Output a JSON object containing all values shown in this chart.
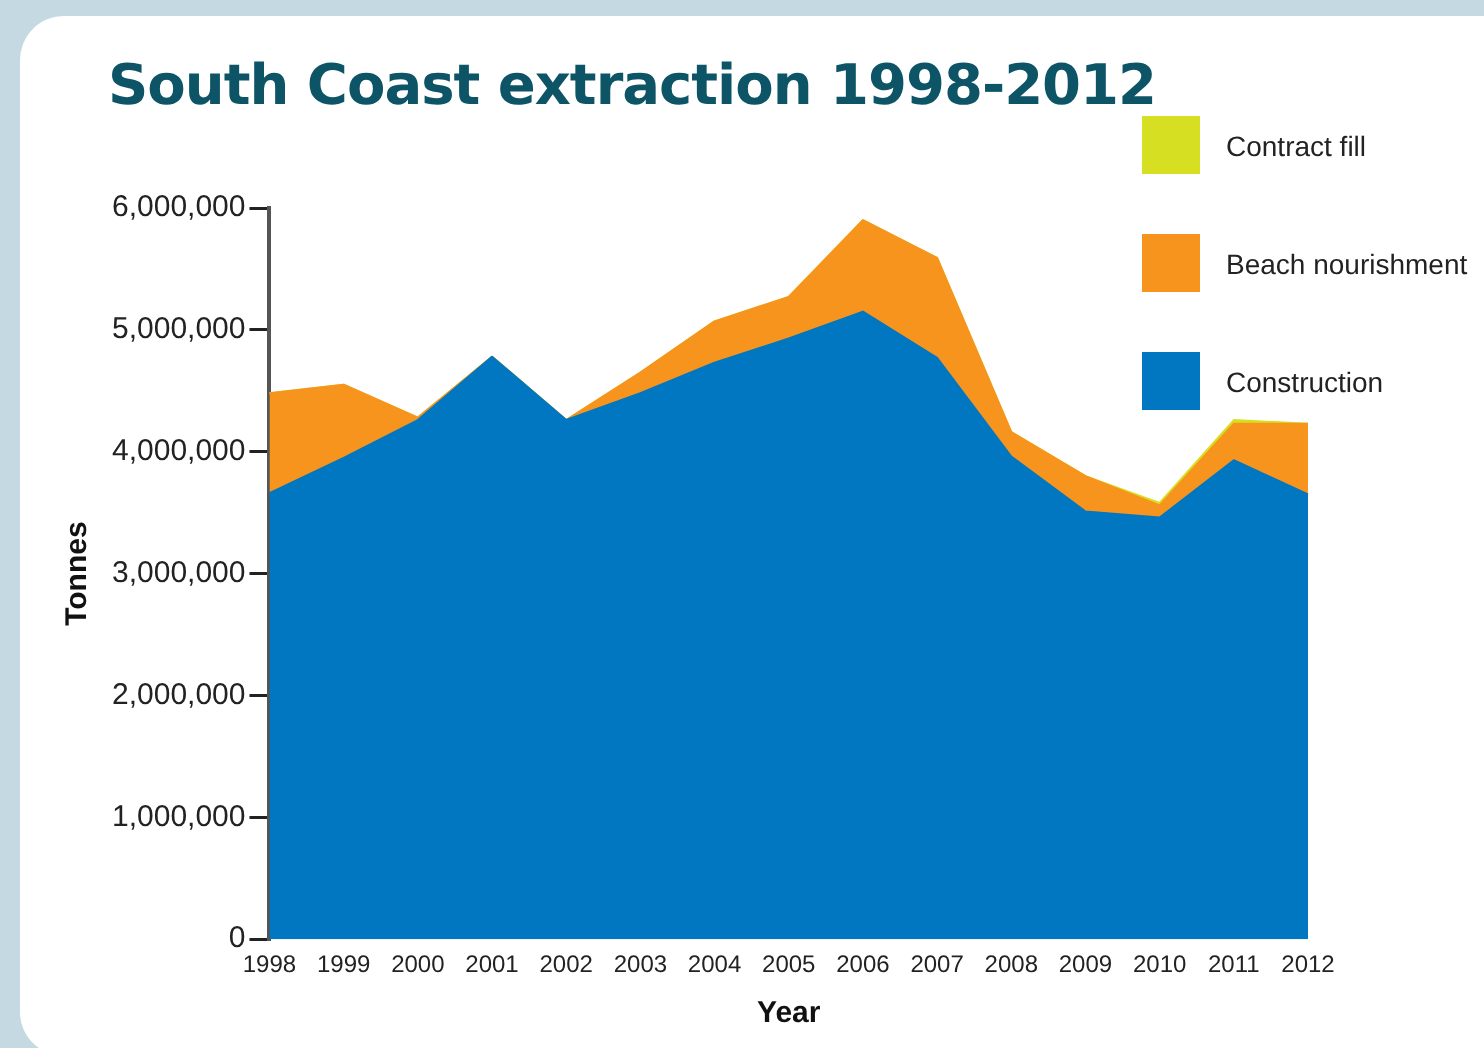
{
  "chart_data": {
    "type": "area",
    "title": "South Coast extraction 1998-2012",
    "xlabel": "Year",
    "ylabel": "Tonnes",
    "stacked": true,
    "legend": "top right",
    "grid": false,
    "categories": [
      "1998",
      "1999",
      "2000",
      "2001",
      "2002",
      "2003",
      "2004",
      "2005",
      "2006",
      "2007",
      "2008",
      "2009",
      "2010",
      "2011",
      "2012"
    ],
    "ylim": [
      0,
      6000000
    ],
    "yticks": [
      {
        "value": 0,
        "label": "0"
      },
      {
        "value": 1000000,
        "label": "1,000,000"
      },
      {
        "value": 2000000,
        "label": "2,000,000"
      },
      {
        "value": 3000000,
        "label": "3,000,000"
      },
      {
        "value": 4000000,
        "label": "4,000,000"
      },
      {
        "value": 5000000,
        "label": "5,000,000"
      },
      {
        "value": 6000000,
        "label": "6,000,000"
      }
    ],
    "series": [
      {
        "name": "Construction",
        "color": "#0077c0",
        "values": [
          3660000,
          3950000,
          4260000,
          4780000,
          4260000,
          4480000,
          4730000,
          4930000,
          5150000,
          4770000,
          3960000,
          3510000,
          3460000,
          3930000,
          3650000
        ]
      },
      {
        "name": "Beach nourishment",
        "color": "#f7941d",
        "values": [
          820000,
          600000,
          20000,
          0,
          0,
          170000,
          340000,
          340000,
          750000,
          820000,
          200000,
          290000,
          100000,
          300000,
          580000
        ]
      },
      {
        "name": "Contract fill",
        "color": "#d7df23",
        "values": [
          0,
          0,
          0,
          0,
          0,
          0,
          0,
          0,
          0,
          0,
          0,
          0,
          20000,
          30000,
          0
        ]
      }
    ]
  }
}
